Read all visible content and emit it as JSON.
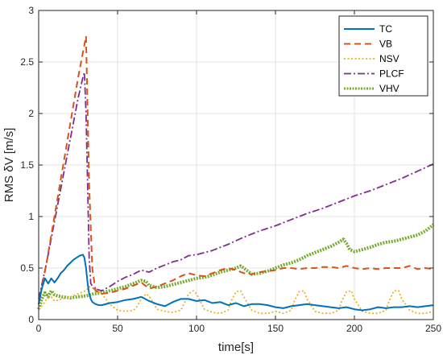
{
  "chart_data": {
    "type": "line",
    "title": "",
    "xlabel": "time[s]",
    "ylabel": "RMS δV [m/s]",
    "xlim": [
      0,
      250
    ],
    "ylim": [
      0,
      3
    ],
    "xticks": [
      0,
      50,
      100,
      150,
      200,
      250
    ],
    "yticks": [
      0,
      0.5,
      1,
      1.5,
      2,
      2.5,
      3
    ],
    "xtick_labels": [
      "0",
      "50",
      "100",
      "150",
      "200",
      "250"
    ],
    "ytick_labels": [
      "0",
      "0.5",
      "1",
      "1.5",
      "2",
      "2.5",
      "3"
    ],
    "grid": true,
    "legend_position": "top-right",
    "series": [
      {
        "name": "TC",
        "color": "#0072BD",
        "style": "solid",
        "x": [
          0,
          2,
          4,
          6,
          8,
          10,
          12,
          14,
          16,
          18,
          20,
          22,
          24,
          26,
          28,
          29,
          30,
          31,
          32,
          33,
          34,
          36,
          38,
          40,
          45,
          50,
          55,
          60,
          65,
          70,
          75,
          80,
          85,
          90,
          95,
          100,
          105,
          110,
          115,
          120,
          125,
          130,
          135,
          140,
          145,
          150,
          155,
          160,
          165,
          170,
          175,
          180,
          185,
          190,
          195,
          200,
          205,
          210,
          215,
          220,
          225,
          230,
          235,
          240,
          245,
          250
        ],
        "y": [
          0.15,
          0.3,
          0.4,
          0.35,
          0.4,
          0.36,
          0.4,
          0.45,
          0.48,
          0.52,
          0.55,
          0.58,
          0.6,
          0.62,
          0.63,
          0.6,
          0.5,
          0.35,
          0.25,
          0.2,
          0.17,
          0.15,
          0.14,
          0.14,
          0.16,
          0.17,
          0.19,
          0.2,
          0.22,
          0.18,
          0.15,
          0.13,
          0.17,
          0.2,
          0.2,
          0.18,
          0.19,
          0.16,
          0.17,
          0.14,
          0.16,
          0.13,
          0.15,
          0.15,
          0.14,
          0.12,
          0.11,
          0.13,
          0.14,
          0.15,
          0.14,
          0.13,
          0.12,
          0.11,
          0.12,
          0.1,
          0.09,
          0.1,
          0.12,
          0.11,
          0.12,
          0.12,
          0.13,
          0.12,
          0.13,
          0.14
        ]
      },
      {
        "name": "VB",
        "color": "#D95319",
        "style": "dashed",
        "x": [
          0,
          5,
          10,
          15,
          20,
          25,
          30,
          31,
          32,
          34,
          36,
          40,
          45,
          50,
          55,
          60,
          65,
          70,
          75,
          80,
          85,
          90,
          95,
          100,
          105,
          110,
          115,
          120,
          125,
          130,
          135,
          140,
          145,
          150,
          155,
          160,
          165,
          170,
          175,
          180,
          185,
          190,
          195,
          200,
          205,
          210,
          215,
          220,
          225,
          230,
          235,
          240,
          245,
          250
        ],
        "y": [
          0.15,
          0.55,
          1.0,
          1.45,
          1.9,
          2.35,
          2.75,
          2.0,
          1.3,
          0.5,
          0.28,
          0.25,
          0.26,
          0.28,
          0.3,
          0.33,
          0.36,
          0.3,
          0.32,
          0.35,
          0.38,
          0.42,
          0.45,
          0.43,
          0.42,
          0.45,
          0.48,
          0.5,
          0.48,
          0.45,
          0.44,
          0.46,
          0.47,
          0.48,
          0.5,
          0.5,
          0.49,
          0.5,
          0.5,
          0.51,
          0.51,
          0.5,
          0.52,
          0.5,
          0.49,
          0.5,
          0.49,
          0.5,
          0.5,
          0.5,
          0.52,
          0.49,
          0.5,
          0.49
        ]
      },
      {
        "name": "NSV",
        "color": "#EDB120",
        "style": "dotted",
        "x": [
          0,
          3,
          5,
          8,
          10,
          15,
          20,
          25,
          30,
          32,
          35,
          40,
          45,
          50,
          55,
          60,
          62,
          65,
          68,
          70,
          75,
          80,
          85,
          90,
          92,
          95,
          98,
          100,
          105,
          110,
          115,
          120,
          122,
          125,
          128,
          130,
          135,
          140,
          145,
          150,
          155,
          160,
          162,
          165,
          168,
          170,
          175,
          180,
          185,
          190,
          192,
          195,
          198,
          200,
          205,
          210,
          215,
          220,
          222,
          225,
          228,
          230,
          235,
          240,
          245,
          250
        ],
        "y": [
          0.1,
          0.15,
          0.2,
          0.22,
          0.18,
          0.2,
          0.22,
          0.25,
          0.28,
          0.32,
          0.3,
          0.25,
          0.15,
          0.09,
          0.08,
          0.09,
          0.12,
          0.2,
          0.25,
          0.23,
          0.1,
          0.08,
          0.07,
          0.09,
          0.15,
          0.25,
          0.28,
          0.25,
          0.1,
          0.07,
          0.06,
          0.09,
          0.18,
          0.27,
          0.28,
          0.22,
          0.09,
          0.06,
          0.06,
          0.08,
          0.06,
          0.09,
          0.18,
          0.27,
          0.28,
          0.2,
          0.08,
          0.06,
          0.06,
          0.09,
          0.18,
          0.27,
          0.28,
          0.2,
          0.08,
          0.06,
          0.06,
          0.09,
          0.18,
          0.28,
          0.28,
          0.2,
          0.09,
          0.06,
          0.06,
          0.08
        ]
      },
      {
        "name": "PLCF",
        "color": "#7E2F8E",
        "style": "dashdot",
        "x": [
          0,
          5,
          10,
          15,
          20,
          25,
          28,
          29,
          30,
          31,
          32,
          33,
          35,
          40,
          45,
          50,
          55,
          60,
          65,
          70,
          75,
          80,
          85,
          90,
          95,
          100,
          110,
          120,
          130,
          140,
          150,
          160,
          170,
          180,
          190,
          200,
          210,
          220,
          230,
          240,
          250
        ],
        "y": [
          0.2,
          0.55,
          0.95,
          1.35,
          1.75,
          2.15,
          2.35,
          2.4,
          2.0,
          1.3,
          0.6,
          0.35,
          0.3,
          0.28,
          0.32,
          0.37,
          0.41,
          0.44,
          0.48,
          0.46,
          0.5,
          0.53,
          0.56,
          0.58,
          0.62,
          0.63,
          0.67,
          0.73,
          0.8,
          0.86,
          0.91,
          0.97,
          1.03,
          1.08,
          1.14,
          1.2,
          1.25,
          1.31,
          1.37,
          1.44,
          1.51
        ]
      },
      {
        "name": "VHV",
        "color": "#77AC30",
        "style": "dotted-marker",
        "x": [
          0,
          2,
          4,
          6,
          8,
          10,
          12,
          15,
          20,
          25,
          30,
          35,
          40,
          45,
          50,
          55,
          60,
          65,
          68,
          70,
          75,
          80,
          85,
          90,
          95,
          100,
          105,
          110,
          115,
          120,
          125,
          128,
          130,
          135,
          140,
          145,
          150,
          155,
          160,
          165,
          170,
          175,
          180,
          185,
          190,
          193,
          195,
          197,
          200,
          205,
          210,
          215,
          220,
          225,
          230,
          235,
          240,
          245,
          250
        ],
        "y": [
          0.1,
          0.2,
          0.26,
          0.22,
          0.28,
          0.24,
          0.23,
          0.22,
          0.21,
          0.22,
          0.23,
          0.25,
          0.26,
          0.28,
          0.3,
          0.32,
          0.35,
          0.38,
          0.37,
          0.33,
          0.31,
          0.32,
          0.34,
          0.36,
          0.38,
          0.4,
          0.41,
          0.43,
          0.46,
          0.48,
          0.5,
          0.52,
          0.5,
          0.44,
          0.45,
          0.47,
          0.5,
          0.53,
          0.55,
          0.58,
          0.62,
          0.65,
          0.68,
          0.71,
          0.75,
          0.78,
          0.74,
          0.68,
          0.66,
          0.68,
          0.7,
          0.73,
          0.75,
          0.76,
          0.78,
          0.8,
          0.82,
          0.86,
          0.92
        ]
      }
    ]
  }
}
